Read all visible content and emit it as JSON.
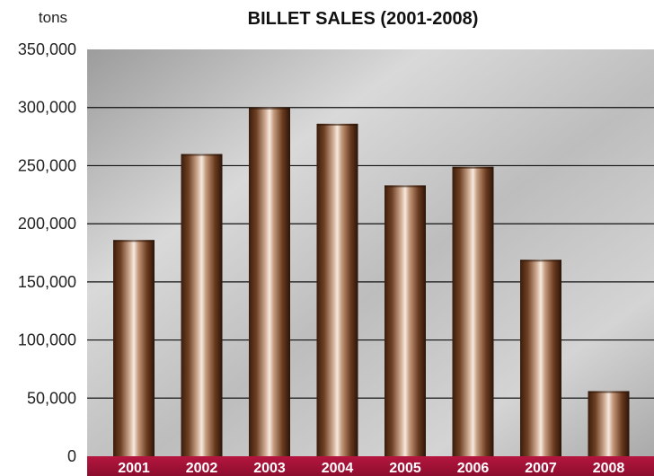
{
  "chart_data": {
    "type": "bar",
    "title": "BILLET SALES (2001-2008)",
    "ylabel": "tons",
    "xlabel": "",
    "categories": [
      "2001",
      "2002",
      "2003",
      "2004",
      "2005",
      "2006",
      "2007",
      "2008"
    ],
    "values": [
      186000,
      260000,
      300000,
      286000,
      233000,
      249000,
      169000,
      56000
    ],
    "ylim": [
      0,
      350000
    ],
    "yticks": [
      "0",
      "50,000",
      "100,000",
      "150,000",
      "200,000",
      "250,000",
      "300,000",
      "350,000"
    ],
    "grid": true,
    "legend": "none",
    "colors": {
      "bar": "#7a4a2e",
      "bar_highlight": "#f2e6dc",
      "bar_shadow": "#2a1408",
      "plot_background": "#c8c8c8",
      "category_band": "#a8123a",
      "category_text": "#ffffff",
      "gridline": "#111111"
    }
  }
}
